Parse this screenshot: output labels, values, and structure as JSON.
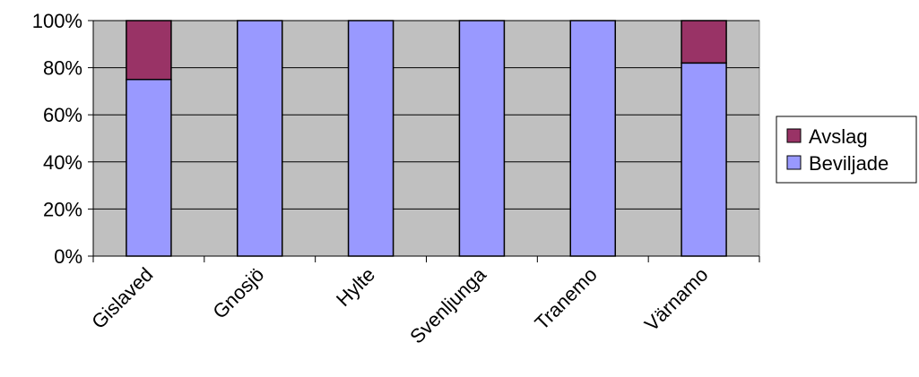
{
  "chart_data": {
    "type": "bar",
    "stacked": true,
    "percent_stacked": true,
    "categories": [
      "Gislaved",
      "Gnosjö",
      "Hylte",
      "Svenljunga",
      "Tranemo",
      "Värnamo"
    ],
    "series": [
      {
        "name": "Beviljade",
        "values": [
          75,
          100,
          100,
          100,
          100,
          82
        ],
        "color": "#9999ff"
      },
      {
        "name": "Avslag",
        "values": [
          25,
          0,
          0,
          0,
          0,
          18
        ],
        "color": "#993366"
      }
    ],
    "yticks": [
      "0%",
      "20%",
      "40%",
      "60%",
      "80%",
      "100%"
    ],
    "ylim": [
      0,
      100
    ],
    "grid": true,
    "plot_background": "#c0c0c0",
    "legend_position": "right",
    "legend_order": [
      "Avslag",
      "Beviljade"
    ]
  }
}
